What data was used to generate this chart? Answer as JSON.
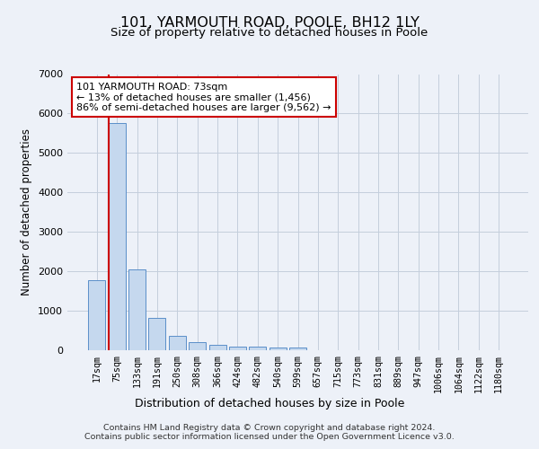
{
  "title1": "101, YARMOUTH ROAD, POOLE, BH12 1LY",
  "title2": "Size of property relative to detached houses in Poole",
  "xlabel": "Distribution of detached houses by size in Poole",
  "ylabel": "Number of detached properties",
  "bar_labels": [
    "17sqm",
    "75sqm",
    "133sqm",
    "191sqm",
    "250sqm",
    "308sqm",
    "366sqm",
    "424sqm",
    "482sqm",
    "540sqm",
    "599sqm",
    "657sqm",
    "715sqm",
    "773sqm",
    "831sqm",
    "889sqm",
    "947sqm",
    "1006sqm",
    "1064sqm",
    "1122sqm",
    "1180sqm"
  ],
  "bar_values": [
    1780,
    5770,
    2060,
    820,
    370,
    210,
    130,
    100,
    100,
    70,
    60,
    0,
    0,
    0,
    0,
    0,
    0,
    0,
    0,
    0,
    0
  ],
  "bar_color": "#c5d8ee",
  "bar_edge_color": "#5b8fc9",
  "subject_line_color": "#cc0000",
  "annotation_text": "101 YARMOUTH ROAD: 73sqm\n← 13% of detached houses are smaller (1,456)\n86% of semi-detached houses are larger (9,562) →",
  "ylim_max": 7000,
  "yticks": [
    0,
    1000,
    2000,
    3000,
    4000,
    5000,
    6000,
    7000
  ],
  "bg_color": "#edf1f8",
  "footer_line1": "Contains HM Land Registry data © Crown copyright and database right 2024.",
  "footer_line2": "Contains public sector information licensed under the Open Government Licence v3.0."
}
